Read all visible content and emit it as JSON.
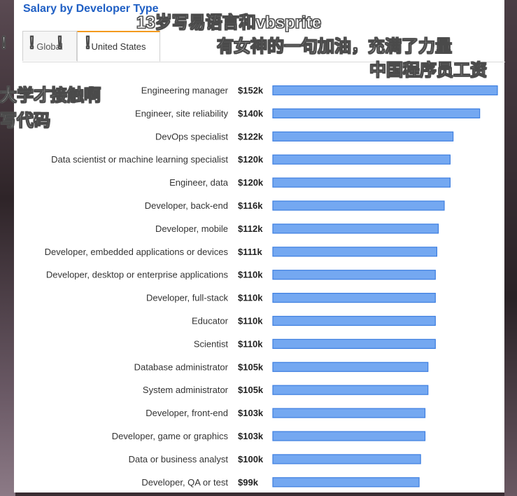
{
  "tabs": [
    {
      "label": "Global"
    },
    {
      "label": "United States"
    }
  ],
  "overlays": [
    {
      "text": "13岁写易语言和vbsprite"
    },
    {
      "text": "有女神的一句加油，充满了力量"
    },
    {
      "text": "中国程序员工资"
    },
    {
      "text": "大学才接触啊"
    },
    {
      "text": "写代码"
    },
    {
      "text": "！！！！"
    }
  ],
  "chart_data": {
    "type": "bar",
    "orientation": "horizontal",
    "title": "Salary by Developer Type",
    "xlabel": "",
    "ylabel": "",
    "xlim": [
      0,
      155
    ],
    "unit_prefix": "$",
    "unit_suffix": "k",
    "categories": [
      "Engineering manager",
      "Engineer, site reliability",
      "DevOps specialist",
      "Data scientist or machine learning specialist",
      "Engineer, data",
      "Developer, back-end",
      "Developer, mobile",
      "Developer, embedded applications or devices",
      "Developer, desktop or enterprise applications",
      "Developer, full-stack",
      "Educator",
      "Scientist",
      "Database administrator",
      "System administrator",
      "Developer, front-end",
      "Developer, game or graphics",
      "Data or business analyst",
      "Developer, QA or test"
    ],
    "values": [
      152,
      140,
      122,
      120,
      120,
      116,
      112,
      111,
      110,
      110,
      110,
      110,
      105,
      105,
      103,
      103,
      100,
      99
    ],
    "value_labels": [
      "$152k",
      "$140k",
      "$122k",
      "$120k",
      "$120k",
      "$116k",
      "$112k",
      "$111k",
      "$110k",
      "$110k",
      "$110k",
      "$110k",
      "$105k",
      "$105k",
      "$103k",
      "$103k",
      "$100k",
      "$99k"
    ],
    "bar_color": "#74a8f1",
    "bar_edge_color": "#3d7ee0",
    "grid": false,
    "legend": "none"
  }
}
